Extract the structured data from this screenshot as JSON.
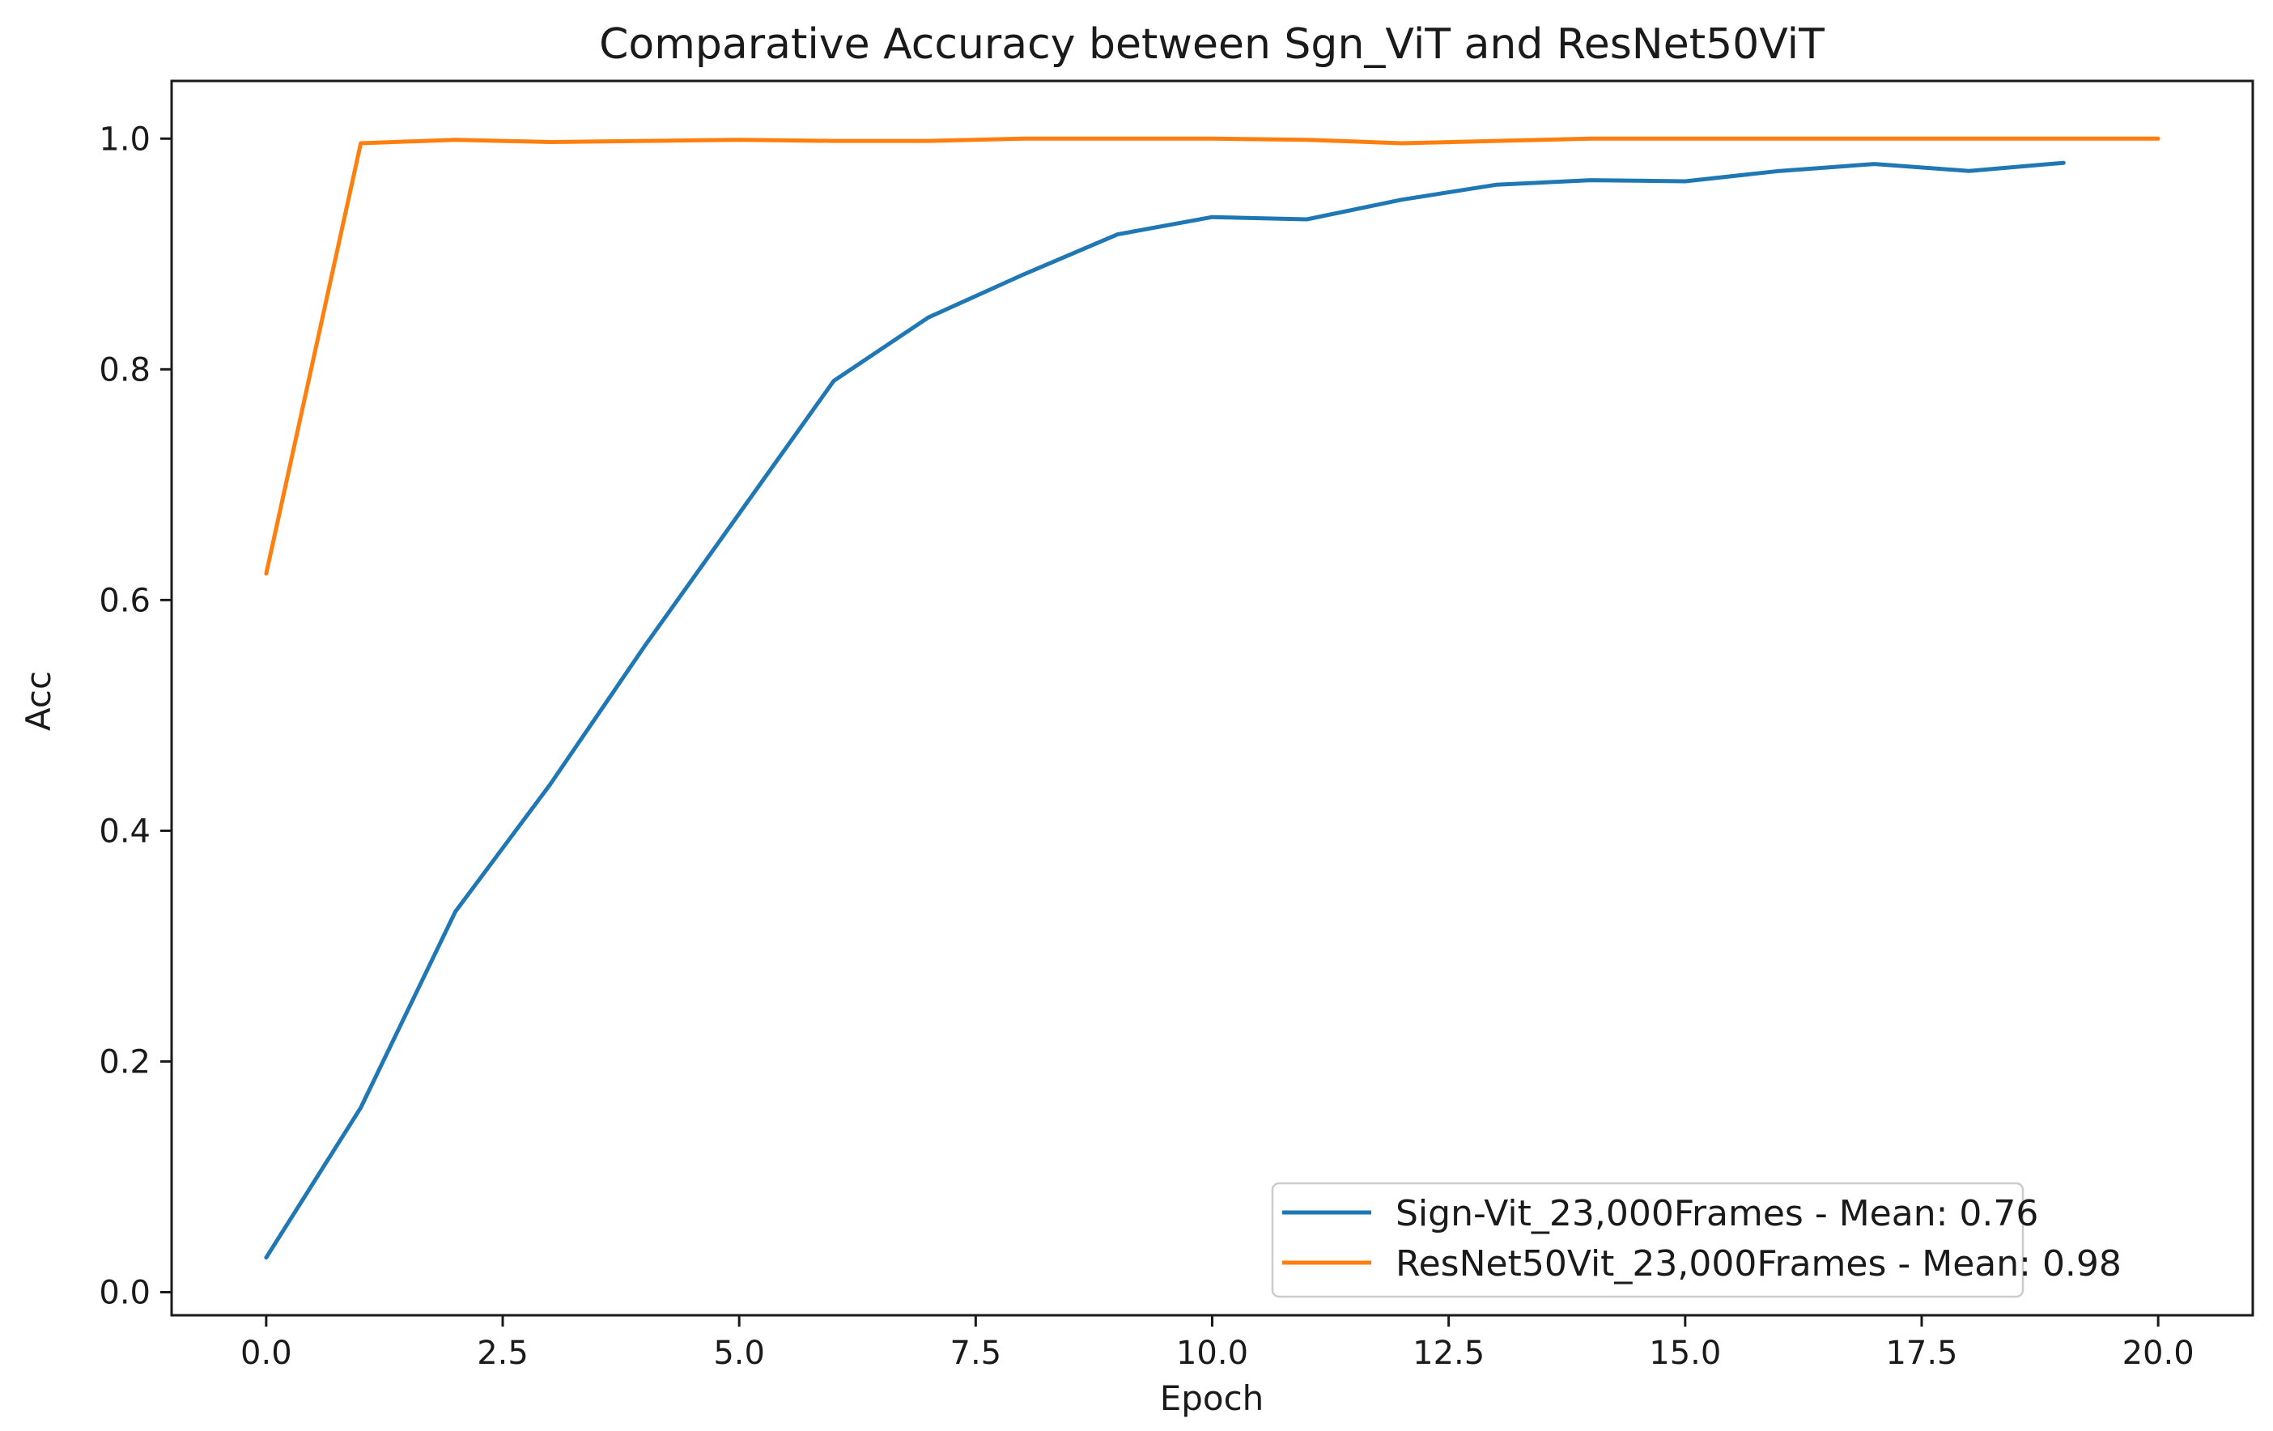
{
  "chart_data": {
    "type": "line",
    "title": "Comparative Accuracy between Sgn_ViT and ResNet50ViT",
    "xlabel": "Epoch",
    "ylabel": "Acc",
    "xlim": [
      -1.0,
      21.0
    ],
    "ylim": [
      -0.02,
      1.05
    ],
    "x_ticks": [
      0.0,
      2.5,
      5.0,
      7.5,
      10.0,
      12.5,
      15.0,
      17.5,
      20.0
    ],
    "x_tick_labels": [
      "0.0",
      "2.5",
      "5.0",
      "7.5",
      "10.0",
      "12.5",
      "15.0",
      "17.5",
      "20.0"
    ],
    "y_ticks": [
      0.0,
      0.2,
      0.4,
      0.6,
      0.8,
      1.0
    ],
    "y_tick_labels": [
      "0.0",
      "0.2",
      "0.4",
      "0.6",
      "0.8",
      "1.0"
    ],
    "grid": false,
    "legend_position": "lower-right",
    "series": [
      {
        "name": "Sign-Vit_23,000Frames - Mean: 0.76",
        "color": "#1f77b4",
        "x": [
          0,
          1,
          2,
          3,
          4,
          5,
          6,
          7,
          8,
          9,
          10,
          11,
          12,
          13,
          14,
          15,
          16,
          17,
          18,
          19
        ],
        "y": [
          0.03,
          0.16,
          0.33,
          0.44,
          0.56,
          0.675,
          0.79,
          0.845,
          0.882,
          0.917,
          0.932,
          0.93,
          0.947,
          0.96,
          0.964,
          0.963,
          0.972,
          0.978,
          0.972,
          0.979
        ]
      },
      {
        "name": "ResNet50Vit_23,000Frames - Mean: 0.98",
        "color": "#ff7f0e",
        "x": [
          0,
          1,
          2,
          3,
          4,
          5,
          6,
          7,
          8,
          9,
          10,
          11,
          12,
          13,
          14,
          15,
          16,
          17,
          18,
          19,
          20
        ],
        "y": [
          0.623,
          0.996,
          0.999,
          0.997,
          0.998,
          0.999,
          0.998,
          0.998,
          1.0,
          1.0,
          1.0,
          0.999,
          0.996,
          0.998,
          1.0,
          1.0,
          1.0,
          1.0,
          1.0,
          1.0,
          1.0
        ]
      }
    ]
  }
}
